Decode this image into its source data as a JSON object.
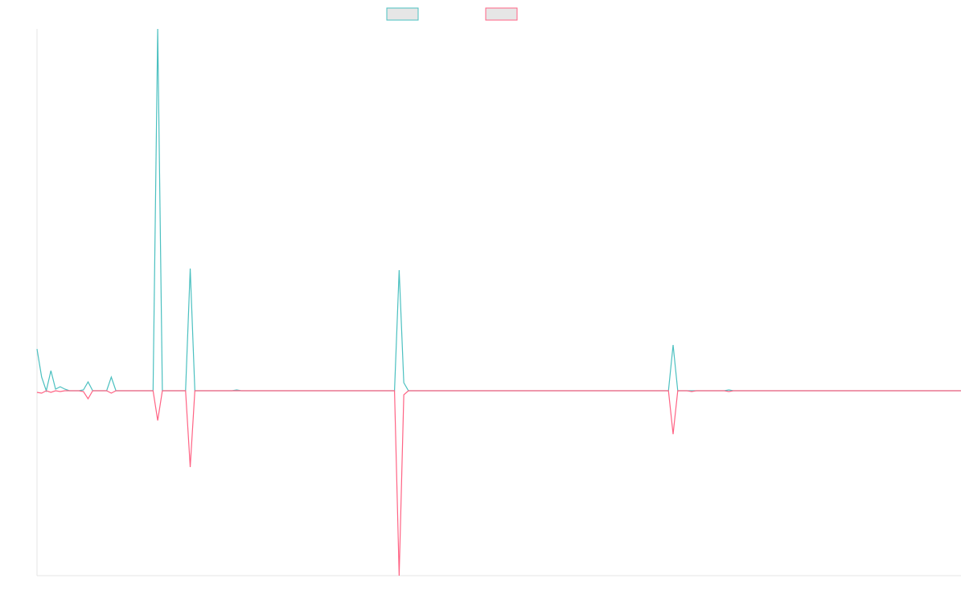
{
  "chart_data": {
    "type": "line",
    "series": [
      {
        "color": "#4bc0c0",
        "values": [
          52,
          17,
          0,
          25,
          2,
          5,
          2,
          0,
          0,
          0,
          1,
          11,
          0,
          0,
          0,
          0,
          17,
          0,
          0,
          0,
          0,
          0,
          0,
          0,
          0,
          0,
          450,
          0,
          0,
          0,
          0,
          0,
          0,
          152,
          0,
          0,
          0,
          0,
          0,
          0,
          0,
          0,
          0,
          1,
          0,
          0,
          0,
          0,
          0,
          0,
          0,
          0,
          0,
          0,
          0,
          0,
          0,
          0,
          0,
          0,
          0,
          0,
          0,
          0,
          0,
          0,
          0,
          0,
          0,
          0,
          0,
          0,
          0,
          0,
          0,
          0,
          0,
          0,
          150,
          10,
          0,
          0,
          0,
          0,
          0,
          0,
          0,
          0,
          0,
          0,
          0,
          0,
          0,
          0,
          0,
          0,
          0,
          0,
          0,
          0,
          0,
          0,
          0,
          0,
          0,
          0,
          0,
          0,
          0,
          0,
          0,
          0,
          0,
          0,
          0,
          0,
          0,
          0,
          0,
          0,
          0,
          0,
          0,
          0,
          0,
          0,
          0,
          0,
          0,
          0,
          0,
          0,
          0,
          0,
          0,
          0,
          0,
          57,
          0,
          0,
          0,
          0,
          0,
          0,
          0,
          0,
          0,
          0,
          0,
          1,
          0,
          0,
          0,
          0,
          0,
          0,
          0,
          0,
          0,
          0,
          0,
          0,
          0,
          0,
          0,
          0,
          0,
          0,
          0,
          0,
          0,
          0,
          0,
          0,
          0,
          0,
          0,
          0,
          0,
          0,
          0,
          0,
          0,
          0,
          0,
          0,
          0,
          0,
          0,
          0,
          0,
          0,
          0,
          0,
          0,
          0,
          0,
          0,
          0,
          0
        ]
      },
      {
        "color": "#ff6384",
        "values": [
          -2,
          -3,
          0,
          -2,
          0,
          -1,
          0,
          0,
          0,
          0,
          -1,
          -10,
          0,
          0,
          0,
          0,
          -3,
          0,
          0,
          0,
          0,
          0,
          0,
          0,
          0,
          0,
          -37,
          0,
          0,
          0,
          0,
          0,
          0,
          -95,
          0,
          0,
          0,
          0,
          0,
          0,
          0,
          0,
          0,
          0,
          0,
          0,
          0,
          0,
          0,
          0,
          0,
          0,
          0,
          0,
          0,
          0,
          0,
          0,
          0,
          0,
          0,
          0,
          0,
          0,
          0,
          0,
          0,
          0,
          0,
          0,
          0,
          0,
          0,
          0,
          0,
          0,
          0,
          0,
          -230,
          -5,
          0,
          0,
          0,
          0,
          0,
          0,
          0,
          0,
          0,
          0,
          0,
          0,
          0,
          0,
          0,
          0,
          0,
          0,
          0,
          0,
          0,
          0,
          0,
          0,
          0,
          0,
          0,
          0,
          0,
          0,
          0,
          0,
          0,
          0,
          0,
          0,
          0,
          0,
          0,
          0,
          0,
          0,
          0,
          0,
          0,
          0,
          0,
          0,
          0,
          0,
          0,
          0,
          0,
          0,
          0,
          0,
          0,
          -54,
          0,
          0,
          0,
          -1,
          0,
          0,
          0,
          0,
          0,
          0,
          0,
          -1,
          0,
          0,
          0,
          0,
          0,
          0,
          0,
          0,
          0,
          0,
          0,
          0,
          0,
          0,
          0,
          0,
          0,
          0,
          0,
          0,
          0,
          0,
          0,
          0,
          0,
          0,
          0,
          0,
          0,
          0,
          0,
          0,
          0,
          0,
          0,
          0,
          0,
          0,
          0,
          0,
          0,
          0,
          0,
          0,
          0,
          0,
          0,
          0,
          0,
          0
        ]
      }
    ],
    "ylim": [
      -230,
      450
    ]
  }
}
